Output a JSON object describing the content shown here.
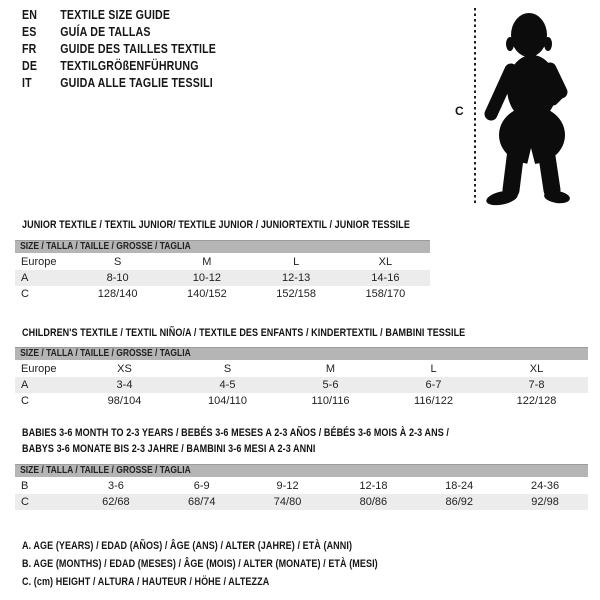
{
  "languages": [
    {
      "code": "EN",
      "title": "TEXTILE SIZE GUIDE"
    },
    {
      "code": "ES",
      "title": "GUÍA DE TALLAS"
    },
    {
      "code": "FR",
      "title": "GUIDE DES TAILLES TEXTILE"
    },
    {
      "code": "DE",
      "title": "TEXTILGRÖßENFÜHRUNG"
    },
    {
      "code": "IT",
      "title": "GUIDA ALLE TAGLIE TESSILI"
    }
  ],
  "figure": {
    "label": "C",
    "description": "toddler-silhouette-with-height-dashed-line"
  },
  "tables": [
    {
      "title_lines": [
        "JUNIOR TEXTILE / TEXTIL JUNIOR/ TEXTILE JUNIOR / JUNIORTEXTIL / JUNIOR TESSILE"
      ],
      "size_header": "SIZE / TALLA / TAILLE / GRÖSSE / TAGLIA",
      "rows": [
        [
          "Europe",
          "S",
          "M",
          "L",
          "XL"
        ],
        [
          "A",
          "8-10",
          "10-12",
          "12-13",
          "14-16"
        ],
        [
          "C",
          "128/140",
          "140/152",
          "152/158",
          "158/170"
        ]
      ],
      "shaded_rows": [
        1
      ]
    },
    {
      "title_lines": [
        "CHILDREN'S TEXTILE / TEXTIL NIÑO/A / TEXTILE DES ENFANTS / KINDERTEXTIL / BAMBINI TESSILE"
      ],
      "size_header": "SIZE / TALLA / TAILLE / GRÖSSE / TAGLIA",
      "rows": [
        [
          "Europe",
          "XS",
          "S",
          "M",
          "L",
          "XL"
        ],
        [
          "A",
          "3-4",
          "4-5",
          "5-6",
          "6-7",
          "7-8"
        ],
        [
          "C",
          "98/104",
          "104/110",
          "110/116",
          "116/122",
          "122/128"
        ]
      ],
      "shaded_rows": [
        1
      ]
    },
    {
      "title_lines": [
        "BABIES 3-6 MONTH TO 2-3 YEARS / BEBÉS 3-6 MESES A 2-3 AÑOS / BÉBÉS 3-6 MOIS À 2-3 ANS /",
        "BABYS 3-6 MONATE BIS 2-3 JAHRE / BAMBINI 3-6 MESI A 2-3 ANNI"
      ],
      "size_header": "SIZE / TALLA / TAILLE / GRÖSSE / TAGLIA",
      "rows": [
        [
          "B",
          "3-6",
          "6-9",
          "9-12",
          "12-18",
          "18-24",
          "24-36"
        ],
        [
          "C",
          "62/68",
          "68/74",
          "74/80",
          "80/86",
          "86/92",
          "92/98"
        ]
      ],
      "shaded_rows": [
        1
      ]
    }
  ],
  "footnotes": [
    "A. AGE (YEARS) / EDAD (AÑOS) / ÂGE (ANS) / ALTER (JAHRE) / ETÀ (ANNI)",
    "B. AGE (MONTHS) / EDAD (MESES) / ÂGE (MOIS) / ALTER (MONATE) / ETÀ (MESI)",
    "C. (cm) HEIGHT / ALTURA / HAUTEUR / HÖHE / ALTEZZA"
  ],
  "colors": {
    "header_bar": "#b5b5b5",
    "header_bar_border": "#9c9c9c",
    "shaded_row": "#ececec",
    "text": "#1d1d1d",
    "silhouette": "#0c0c0c"
  }
}
